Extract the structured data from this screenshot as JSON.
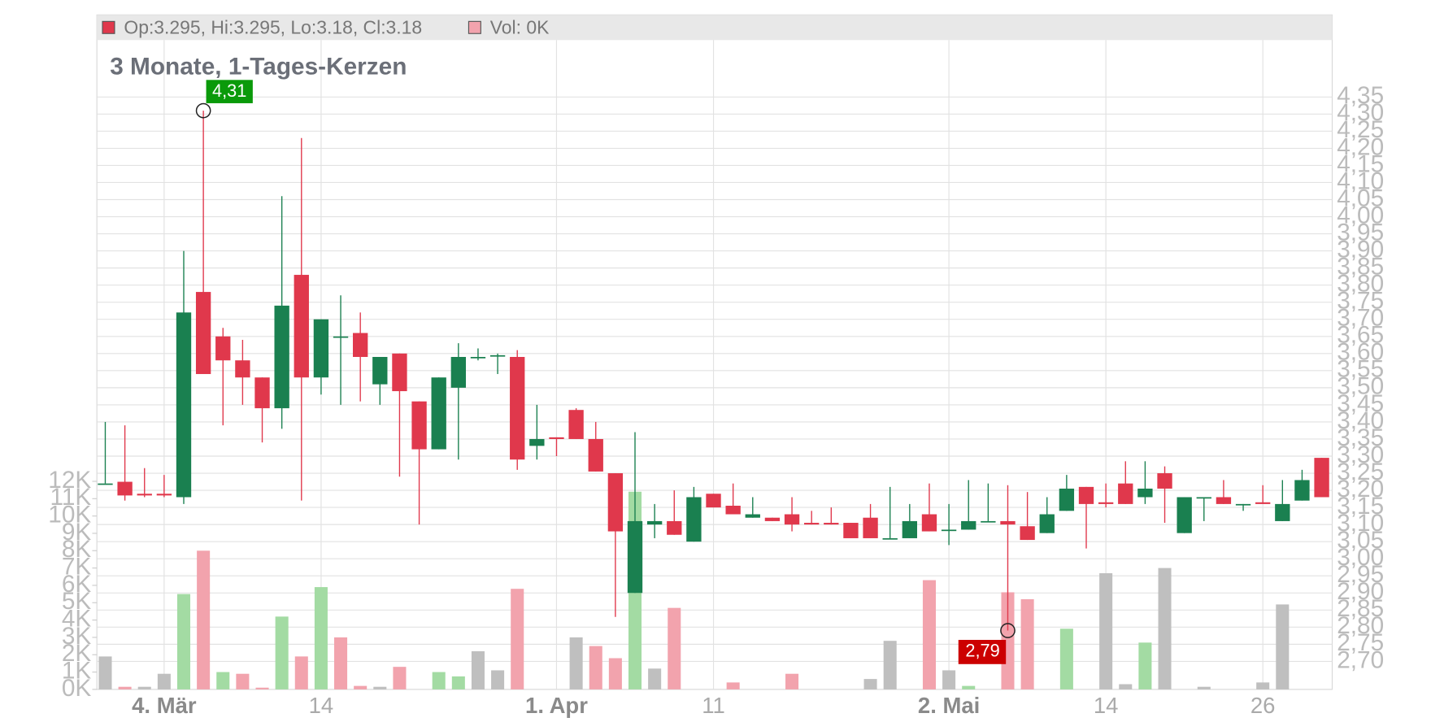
{
  "chart_data": {
    "type": "candlestick",
    "title": "3 Monate, 1-Tages-Kerzen",
    "header": [
      {
        "color": "#e0384c",
        "text": "Op:3.295, Hi:3.295, Lo:3.18, Cl:3.18"
      },
      {
        "color": "#f2a3ad",
        "text": "Vol: 0K"
      }
    ],
    "categories": [
      null,
      null,
      null,
      "4. Mär",
      null,
      null,
      null,
      null,
      null,
      null,
      null,
      "14",
      null,
      null,
      null,
      null,
      null,
      null,
      null,
      null,
      null,
      null,
      null,
      "1. Apr",
      null,
      null,
      null,
      null,
      null,
      null,
      null,
      "11",
      null,
      null,
      null,
      null,
      null,
      null,
      null,
      null,
      null,
      null,
      null,
      "2. Mai",
      null,
      null,
      null,
      null,
      null,
      null,
      null,
      "14",
      null,
      null,
      null,
      null,
      null,
      null,
      null,
      "26",
      null,
      null,
      null
    ],
    "open": [
      3.22,
      3.225,
      3.19,
      3.19,
      3.18,
      3.78,
      3.65,
      3.58,
      3.53,
      3.44,
      3.83,
      3.53,
      3.65,
      3.66,
      3.51,
      3.6,
      3.46,
      3.32,
      3.5,
      3.59,
      3.595,
      3.59,
      3.33,
      3.355,
      3.435,
      3.35,
      3.25,
      2.9,
      3.1,
      3.11,
      3.05,
      3.19,
      3.155,
      3.12,
      3.12,
      3.13,
      3.105,
      3.105,
      3.105,
      3.12,
      3.06,
      3.06,
      3.13,
      3.085,
      3.085,
      3.11,
      3.11,
      3.095,
      3.075,
      3.14,
      3.21,
      3.165,
      3.22,
      3.18,
      3.25,
      3.075,
      3.18,
      3.18,
      3.16,
      3.165,
      3.11,
      3.17,
      3.295
    ],
    "high": [
      3.4,
      3.39,
      3.265,
      3.245,
      3.9,
      4.31,
      3.675,
      3.64,
      3.53,
      4.06,
      4.23,
      3.7,
      3.77,
      3.72,
      3.59,
      3.6,
      3.46,
      3.53,
      3.63,
      3.615,
      3.6,
      3.61,
      3.45,
      3.355,
      3.44,
      3.4,
      3.25,
      3.37,
      3.16,
      3.2,
      3.21,
      3.19,
      3.22,
      3.18,
      3.12,
      3.18,
      3.14,
      3.15,
      3.105,
      3.16,
      3.21,
      3.16,
      3.22,
      3.16,
      3.23,
      3.22,
      3.215,
      3.195,
      3.18,
      3.245,
      3.21,
      3.22,
      3.285,
      3.285,
      3.27,
      3.18,
      3.18,
      3.23,
      3.16,
      3.215,
      3.23,
      3.26,
      3.295
    ],
    "low": [
      3.22,
      3.17,
      3.18,
      3.18,
      3.16,
      3.54,
      3.39,
      3.45,
      3.34,
      3.38,
      3.17,
      3.48,
      3.45,
      3.46,
      3.45,
      3.24,
      3.1,
      3.32,
      3.29,
      3.58,
      3.54,
      3.26,
      3.29,
      3.3,
      3.35,
      3.255,
      2.83,
      2.9,
      3.06,
      3.07,
      3.05,
      3.15,
      3.13,
      3.12,
      3.11,
      3.08,
      3.1,
      3.1,
      3.06,
      3.06,
      3.06,
      3.06,
      3.08,
      3.04,
      3.085,
      3.11,
      2.79,
      3.055,
      3.075,
      3.14,
      3.03,
      3.15,
      3.16,
      3.16,
      3.105,
      3.075,
      3.11,
      3.16,
      3.14,
      3.16,
      3.11,
      3.17,
      3.18
    ],
    "close": [
      3.22,
      3.185,
      3.185,
      3.185,
      3.72,
      3.54,
      3.58,
      3.53,
      3.44,
      3.74,
      3.53,
      3.7,
      3.65,
      3.59,
      3.59,
      3.49,
      3.32,
      3.53,
      3.59,
      3.59,
      3.595,
      3.29,
      3.35,
      3.35,
      3.35,
      3.255,
      3.08,
      3.11,
      3.11,
      3.07,
      3.18,
      3.15,
      3.13,
      3.13,
      3.11,
      3.1,
      3.1,
      3.1,
      3.06,
      3.06,
      3.06,
      3.11,
      3.08,
      3.085,
      3.11,
      3.11,
      3.1,
      3.055,
      3.13,
      3.205,
      3.16,
      3.16,
      3.16,
      3.205,
      3.205,
      3.18,
      3.18,
      3.16,
      3.16,
      3.16,
      3.16,
      3.23,
      3.18
    ],
    "up_color": "#1a8050",
    "down_color": "#e0384c",
    "volume": [
      1.9,
      0.15,
      0.15,
      0.9,
      5.5,
      8.0,
      1.0,
      0.9,
      0.1,
      4.2,
      1.9,
      5.9,
      3.0,
      0.2,
      0.15,
      1.3,
      0,
      1.0,
      0.75,
      2.2,
      1.1,
      5.8,
      0,
      0,
      3.0,
      2.5,
      1.8,
      11.4,
      1.2,
      4.7,
      0,
      0,
      0.4,
      0,
      0,
      0.9,
      0,
      0,
      0,
      0.6,
      2.8,
      0,
      6.3,
      1.1,
      0.2,
      0,
      5.6,
      5.2,
      0,
      3.5,
      0,
      6.7,
      0.3,
      2.7,
      7.0,
      0,
      0.15,
      0,
      0,
      0.4,
      4.9,
      0,
      0
    ],
    "volume_colors": [
      "#bfbfbf",
      "#f2a3ad",
      "#bfbfbf",
      "#bfbfbf",
      "#a3dba3",
      "#f2a3ad",
      "#a3dba3",
      "#f2a3ad",
      "#f2a3ad",
      "#a3dba3",
      "#f2a3ad",
      "#a3dba3",
      "#f2a3ad",
      "#f2a3ad",
      "#bfbfbf",
      "#f2a3ad",
      "#bfbfbf",
      "#a3dba3",
      "#a3dba3",
      "#bfbfbf",
      "#bfbfbf",
      "#f2a3ad",
      "#bfbfbf",
      "#bfbfbf",
      "#bfbfbf",
      "#f2a3ad",
      "#f2a3ad",
      "#a3dba3",
      "#bfbfbf",
      "#f2a3ad",
      "#bfbfbf",
      "#bfbfbf",
      "#f2a3ad",
      "#bfbfbf",
      "#bfbfbf",
      "#f2a3ad",
      "#bfbfbf",
      "#bfbfbf",
      "#bfbfbf",
      "#bfbfbf",
      "#bfbfbf",
      "#bfbfbf",
      "#f2a3ad",
      "#bfbfbf",
      "#a3dba3",
      "#bfbfbf",
      "#f2a3ad",
      "#f2a3ad",
      "#bfbfbf",
      "#a3dba3",
      "#bfbfbf",
      "#bfbfbf",
      "#bfbfbf",
      "#a3dba3",
      "#bfbfbf",
      "#bfbfbf",
      "#bfbfbf",
      "#bfbfbf",
      "#bfbfbf",
      "#bfbfbf",
      "#bfbfbf",
      "#bfbfbf",
      "#bfbfbf"
    ],
    "ylim": [
      2.618,
      4.59
    ],
    "yticks": [
      {
        "value": 2.7,
        "label": "2,70"
      },
      {
        "value": 2.75,
        "label": "2,75"
      },
      {
        "value": 2.8,
        "label": "2,80"
      },
      {
        "value": 2.85,
        "label": "2,85"
      },
      {
        "value": 2.9,
        "label": "2,90"
      },
      {
        "value": 2.95,
        "label": "2,95"
      },
      {
        "value": 3.0,
        "label": "3,00"
      },
      {
        "value": 3.05,
        "label": "3,05"
      },
      {
        "value": 3.1,
        "label": "3,10"
      },
      {
        "value": 3.15,
        "label": "3,15"
      },
      {
        "value": 3.2,
        "label": "3,20"
      },
      {
        "value": 3.25,
        "label": "3,25"
      },
      {
        "value": 3.3,
        "label": "3,30"
      },
      {
        "value": 3.35,
        "label": "3,35"
      },
      {
        "value": 3.4,
        "label": "3,40"
      },
      {
        "value": 3.45,
        "label": "3,45"
      },
      {
        "value": 3.5,
        "label": "3,50"
      },
      {
        "value": 3.55,
        "label": "3,55"
      },
      {
        "value": 3.6,
        "label": "3,60"
      },
      {
        "value": 3.65,
        "label": "3,65"
      },
      {
        "value": 3.7,
        "label": "3,70"
      },
      {
        "value": 3.75,
        "label": "3,75"
      },
      {
        "value": 3.8,
        "label": "3,80"
      },
      {
        "value": 3.85,
        "label": "3,85"
      },
      {
        "value": 3.9,
        "label": "3,90"
      },
      {
        "value": 3.95,
        "label": "3,95"
      },
      {
        "value": 4.0,
        "label": "4,00"
      },
      {
        "value": 4.05,
        "label": "4,05"
      },
      {
        "value": 4.1,
        "label": "4,10"
      },
      {
        "value": 4.15,
        "label": "4,15"
      },
      {
        "value": 4.2,
        "label": "4,20"
      },
      {
        "value": 4.25,
        "label": "4,25"
      },
      {
        "value": 4.3,
        "label": "4,30"
      },
      {
        "value": 4.35,
        "label": "4,35"
      }
    ],
    "y2lim": [
      0,
      38.9
    ],
    "y2ticks": [
      {
        "value": 0,
        "label": "0K"
      },
      {
        "value": 1,
        "label": "1K"
      },
      {
        "value": 2,
        "label": "2K"
      },
      {
        "value": 3,
        "label": "3K"
      },
      {
        "value": 4,
        "label": "4K"
      },
      {
        "value": 5,
        "label": "5K"
      },
      {
        "value": 6,
        "label": "6K"
      },
      {
        "value": 7,
        "label": "7K"
      },
      {
        "value": 8,
        "label": "8K"
      },
      {
        "value": 9,
        "label": "9K"
      },
      {
        "value": 10,
        "label": "10K"
      },
      {
        "value": 11,
        "label": "11K"
      },
      {
        "value": 12,
        "label": "12K"
      }
    ],
    "high_label": {
      "value": 4.31,
      "label": "4,31",
      "color": "#0a9a0a"
    },
    "low_label": {
      "value": 2.79,
      "label": "2,79",
      "color": "#cc0000"
    },
    "grid": true
  }
}
